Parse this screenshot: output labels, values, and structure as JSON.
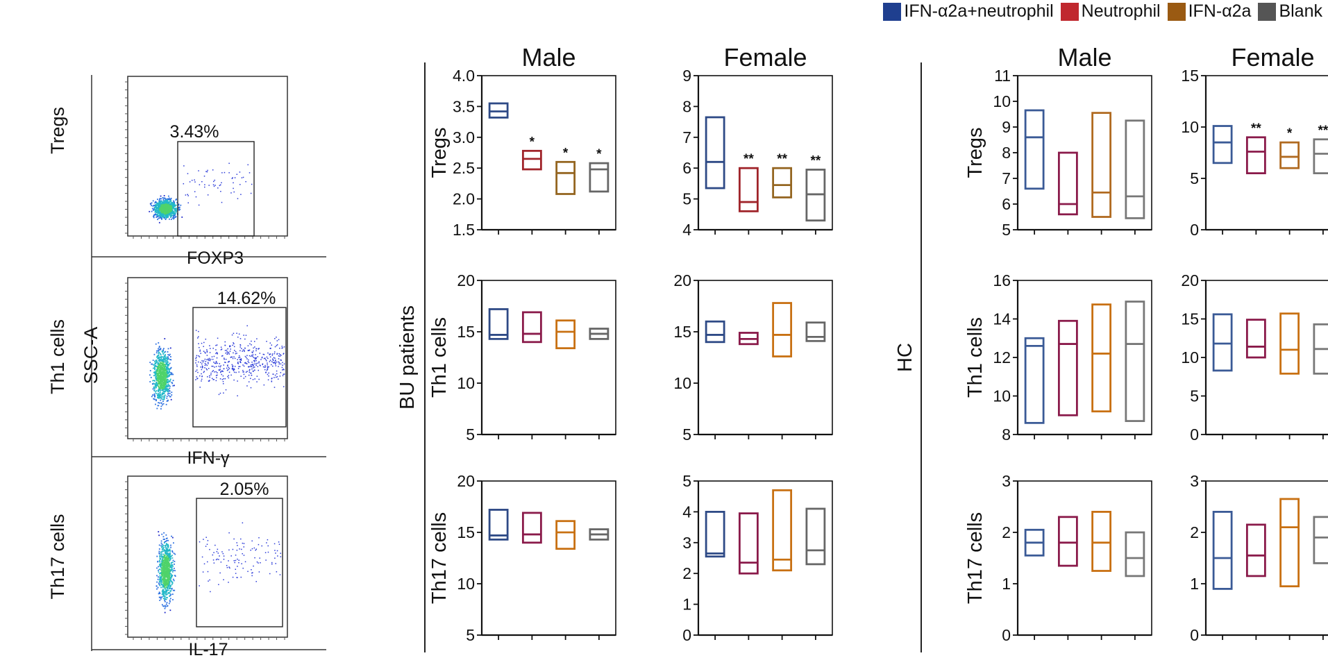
{
  "legend": [
    {
      "label": "IFN-α2a+neutrophil",
      "color": "#1f3f8f"
    },
    {
      "label": "Neutrophil",
      "color": "#c0282e"
    },
    {
      "label": "IFN-α2a",
      "color": "#9a5a12"
    },
    {
      "label": "Blank",
      "color": "#555555"
    }
  ],
  "flow": {
    "ylabel": "SSC-A",
    "panels": [
      {
        "row_label": "Tregs",
        "xlabel": "FOXP3",
        "percent": "3.43%"
      },
      {
        "row_label": "Th1 cells",
        "xlabel": "IFN-γ",
        "percent": "14.62%"
      },
      {
        "row_label": "Th17 cells",
        "xlabel": "IL-17",
        "percent": "2.05%"
      }
    ]
  },
  "groups": {
    "bu": "BU patients",
    "hc": "HC"
  },
  "chart_data": [
    {
      "type": "box",
      "group": "BU patients",
      "title": "Male",
      "ylabel": "Tregs",
      "ylim": [
        1.5,
        4.0
      ],
      "yticks": [
        "1.5",
        "2.0",
        "2.5",
        "3.0",
        "3.5",
        "4.0"
      ],
      "series": [
        {
          "name": "IFN-α2a+neutrophil",
          "color": "#2e4a86",
          "min": 3.32,
          "median": 3.42,
          "max": 3.55,
          "sig": ""
        },
        {
          "name": "Neutrophil",
          "color": "#a0242a",
          "min": 2.48,
          "median": 2.65,
          "max": 2.78,
          "sig": "*"
        },
        {
          "name": "IFN-α2a",
          "color": "#946520",
          "min": 2.08,
          "median": 2.42,
          "max": 2.6,
          "sig": "*"
        },
        {
          "name": "Blank",
          "color": "#666666",
          "min": 2.12,
          "median": 2.48,
          "max": 2.58,
          "sig": "*"
        }
      ]
    },
    {
      "type": "box",
      "group": "BU patients",
      "title": "Female",
      "ylabel": "",
      "ylim": [
        4,
        9
      ],
      "yticks": [
        "4",
        "5",
        "6",
        "7",
        "8",
        "9"
      ],
      "series": [
        {
          "name": "IFN-α2a+neutrophil",
          "color": "#2e4a86",
          "min": 5.35,
          "median": 6.2,
          "max": 7.65,
          "sig": ""
        },
        {
          "name": "Neutrophil",
          "color": "#a0242a",
          "min": 4.6,
          "median": 4.9,
          "max": 6.0,
          "sig": "**"
        },
        {
          "name": "IFN-α2a",
          "color": "#946520",
          "min": 5.05,
          "median": 5.45,
          "max": 6.0,
          "sig": "**"
        },
        {
          "name": "Blank",
          "color": "#666666",
          "min": 4.3,
          "median": 5.15,
          "max": 5.95,
          "sig": "**"
        }
      ]
    },
    {
      "type": "box",
      "group": "HC",
      "title": "Male",
      "ylabel": "Tregs",
      "ylim": [
        5,
        11
      ],
      "yticks": [
        "5",
        "6",
        "7",
        "8",
        "9",
        "10",
        "11"
      ],
      "series": [
        {
          "name": "IFN-α2a+neutrophil",
          "color": "#3a5a96",
          "min": 6.6,
          "median": 8.6,
          "max": 9.65,
          "sig": ""
        },
        {
          "name": "Neutrophil",
          "color": "#8a1a4a",
          "min": 5.6,
          "median": 6.0,
          "max": 8.0,
          "sig": ""
        },
        {
          "name": "IFN-α2a",
          "color": "#b06a20",
          "min": 5.5,
          "median": 6.45,
          "max": 9.55,
          "sig": ""
        },
        {
          "name": "Blank",
          "color": "#777777",
          "min": 5.45,
          "median": 6.3,
          "max": 9.25,
          "sig": ""
        }
      ]
    },
    {
      "type": "box",
      "group": "HC",
      "title": "Female",
      "ylabel": "",
      "ylim": [
        0,
        15
      ],
      "yticks": [
        "0",
        "5",
        "10",
        "15"
      ],
      "series": [
        {
          "name": "IFN-α2a+neutrophil",
          "color": "#3a5a96",
          "min": 6.5,
          "median": 8.5,
          "max": 10.1,
          "sig": ""
        },
        {
          "name": "Neutrophil",
          "color": "#8a1a4a",
          "min": 5.5,
          "median": 7.6,
          "max": 9.0,
          "sig": "**"
        },
        {
          "name": "IFN-α2a",
          "color": "#b06a20",
          "min": 6.0,
          "median": 7.1,
          "max": 8.5,
          "sig": "*"
        },
        {
          "name": "Blank",
          "color": "#777777",
          "min": 5.5,
          "median": 7.4,
          "max": 8.8,
          "sig": "**"
        }
      ]
    },
    {
      "type": "box",
      "group": "BU patients",
      "title": "",
      "ylabel": "Th1 cells",
      "ylim": [
        5,
        20
      ],
      "yticks": [
        "5",
        "10",
        "15",
        "20"
      ],
      "series": [
        {
          "name": "IFN-α2a+neutrophil",
          "color": "#2e4a86",
          "min": 14.3,
          "median": 14.7,
          "max": 17.2,
          "sig": ""
        },
        {
          "name": "Neutrophil",
          "color": "#8a1a4a",
          "min": 14.0,
          "median": 14.8,
          "max": 16.9,
          "sig": ""
        },
        {
          "name": "IFN-α2a",
          "color": "#c87012",
          "min": 13.4,
          "median": 15.0,
          "max": 16.1,
          "sig": ""
        },
        {
          "name": "Blank",
          "color": "#666666",
          "min": 14.3,
          "median": 14.8,
          "max": 15.3,
          "sig": ""
        }
      ]
    },
    {
      "type": "box",
      "group": "BU patients",
      "title": "",
      "ylabel": "",
      "ylim": [
        5,
        20
      ],
      "yticks": [
        "5",
        "10",
        "15",
        "20"
      ],
      "series": [
        {
          "name": "IFN-α2a+neutrophil",
          "color": "#2e4a86",
          "min": 14.0,
          "median": 14.7,
          "max": 16.0,
          "sig": ""
        },
        {
          "name": "Neutrophil",
          "color": "#8a1a4a",
          "min": 13.8,
          "median": 14.3,
          "max": 14.9,
          "sig": ""
        },
        {
          "name": "IFN-α2a",
          "color": "#c87012",
          "min": 12.6,
          "median": 14.7,
          "max": 17.8,
          "sig": ""
        },
        {
          "name": "Blank",
          "color": "#666666",
          "min": 14.1,
          "median": 14.5,
          "max": 15.9,
          "sig": ""
        }
      ]
    },
    {
      "type": "box",
      "group": "HC",
      "title": "",
      "ylabel": "Th1 cells",
      "ylim": [
        8,
        16
      ],
      "yticks": [
        "8",
        "10",
        "12",
        "14",
        "16"
      ],
      "series": [
        {
          "name": "IFN-α2a+neutrophil",
          "color": "#3a5a96",
          "min": 8.6,
          "median": 12.6,
          "max": 13.0,
          "sig": ""
        },
        {
          "name": "Neutrophil",
          "color": "#8a1a4a",
          "min": 9.0,
          "median": 12.7,
          "max": 13.9,
          "sig": ""
        },
        {
          "name": "IFN-α2a",
          "color": "#c87012",
          "min": 9.2,
          "median": 12.2,
          "max": 14.75,
          "sig": ""
        },
        {
          "name": "Blank",
          "color": "#777777",
          "min": 8.7,
          "median": 12.7,
          "max": 14.9,
          "sig": ""
        }
      ]
    },
    {
      "type": "box",
      "group": "HC",
      "title": "",
      "ylabel": "",
      "ylim": [
        0,
        20
      ],
      "yticks": [
        "0",
        "5",
        "10",
        "15",
        "20"
      ],
      "series": [
        {
          "name": "IFN-α2a+neutrophil",
          "color": "#3a5a96",
          "min": 8.3,
          "median": 11.8,
          "max": 15.6,
          "sig": ""
        },
        {
          "name": "Neutrophil",
          "color": "#8a1a4a",
          "min": 10.0,
          "median": 11.4,
          "max": 14.9,
          "sig": ""
        },
        {
          "name": "IFN-α2a",
          "color": "#c87012",
          "min": 7.9,
          "median": 11.0,
          "max": 15.7,
          "sig": ""
        },
        {
          "name": "Blank",
          "color": "#777777",
          "min": 7.9,
          "median": 11.1,
          "max": 14.3,
          "sig": ""
        }
      ]
    },
    {
      "type": "box",
      "group": "BU patients",
      "title": "",
      "ylabel": "Th17 cells",
      "ylim": [
        5,
        20
      ],
      "yticks": [
        "5",
        "10",
        "15",
        "20"
      ],
      "series": [
        {
          "name": "IFN-α2a+neutrophil",
          "color": "#2e4a86",
          "min": 14.3,
          "median": 14.7,
          "max": 17.2,
          "sig": ""
        },
        {
          "name": "Neutrophil",
          "color": "#8a1a4a",
          "min": 14.0,
          "median": 14.8,
          "max": 16.9,
          "sig": ""
        },
        {
          "name": "IFN-α2a",
          "color": "#c87012",
          "min": 13.4,
          "median": 15.0,
          "max": 16.1,
          "sig": ""
        },
        {
          "name": "Blank",
          "color": "#666666",
          "min": 14.3,
          "median": 14.8,
          "max": 15.3,
          "sig": ""
        }
      ]
    },
    {
      "type": "box",
      "group": "BU patients",
      "title": "",
      "ylabel": "",
      "ylim": [
        0,
        5
      ],
      "yticks": [
        "0",
        "1",
        "2",
        "3",
        "4",
        "5"
      ],
      "series": [
        {
          "name": "IFN-α2a+neutrophil",
          "color": "#2e4a86",
          "min": 2.55,
          "median": 2.65,
          "max": 4.0,
          "sig": ""
        },
        {
          "name": "Neutrophil",
          "color": "#8a1a4a",
          "min": 2.0,
          "median": 2.35,
          "max": 3.95,
          "sig": ""
        },
        {
          "name": "IFN-α2a",
          "color": "#c87012",
          "min": 2.1,
          "median": 2.45,
          "max": 4.7,
          "sig": ""
        },
        {
          "name": "Blank",
          "color": "#666666",
          "min": 2.3,
          "median": 2.75,
          "max": 4.1,
          "sig": ""
        }
      ]
    },
    {
      "type": "box",
      "group": "HC",
      "title": "",
      "ylabel": "Th17 cells",
      "ylim": [
        0,
        3
      ],
      "yticks": [
        "0",
        "1",
        "2",
        "3"
      ],
      "series": [
        {
          "name": "IFN-α2a+neutrophil",
          "color": "#3a5a96",
          "min": 1.55,
          "median": 1.8,
          "max": 2.05,
          "sig": ""
        },
        {
          "name": "Neutrophil",
          "color": "#8a1a4a",
          "min": 1.35,
          "median": 1.8,
          "max": 2.3,
          "sig": ""
        },
        {
          "name": "IFN-α2a",
          "color": "#c87012",
          "min": 1.25,
          "median": 1.8,
          "max": 2.4,
          "sig": ""
        },
        {
          "name": "Blank",
          "color": "#777777",
          "min": 1.15,
          "median": 1.5,
          "max": 2.0,
          "sig": ""
        }
      ]
    },
    {
      "type": "box",
      "group": "HC",
      "title": "",
      "ylabel": "",
      "ylim": [
        0,
        3
      ],
      "yticks": [
        "0",
        "1",
        "2",
        "3"
      ],
      "series": [
        {
          "name": "IFN-α2a+neutrophil",
          "color": "#3a5a96",
          "min": 0.9,
          "median": 1.5,
          "max": 2.4,
          "sig": ""
        },
        {
          "name": "Neutrophil",
          "color": "#8a1a4a",
          "min": 1.15,
          "median": 1.55,
          "max": 2.15,
          "sig": ""
        },
        {
          "name": "IFN-α2a",
          "color": "#c87012",
          "min": 0.95,
          "median": 2.1,
          "max": 2.65,
          "sig": ""
        },
        {
          "name": "Blank",
          "color": "#777777",
          "min": 1.4,
          "median": 1.9,
          "max": 2.3,
          "sig": ""
        }
      ]
    }
  ]
}
